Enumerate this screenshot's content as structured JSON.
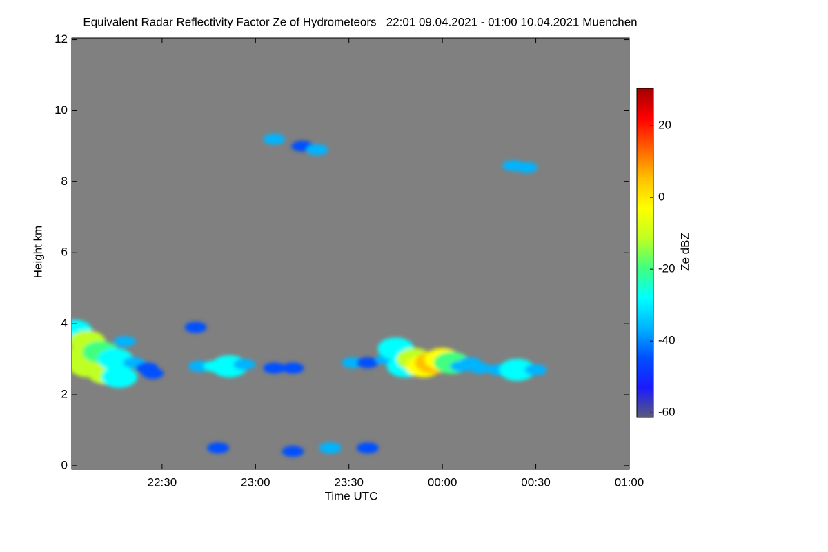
{
  "chart_data": {
    "type": "heatmap",
    "title": "Equivalent Radar Reflectivity Factor Ze of Hydrometeors   22:01 09.04.2021 - 01:00 10.04.2021 Muenchen",
    "x_label": "Time UTC",
    "y_label": "Height km",
    "colorbar_label": "Ze dBZ",
    "xlim": [
      22.0167,
      25.0
    ],
    "xticks": [
      {
        "value": 22.5,
        "label": "22:30"
      },
      {
        "value": 23.0,
        "label": "23:00"
      },
      {
        "value": 23.5,
        "label": "23:30"
      },
      {
        "value": 24.0,
        "label": "00:00"
      },
      {
        "value": 24.5,
        "label": "00:30"
      },
      {
        "value": 25.0,
        "label": "01:00"
      }
    ],
    "ylim": [
      -0.1,
      12.05
    ],
    "yticks": [
      0,
      2,
      4,
      6,
      8,
      10,
      12
    ],
    "zlim": [
      -61.3,
      30.4
    ],
    "zticks": [
      -60,
      -40,
      -20,
      0,
      20
    ],
    "background": "#808080",
    "colormap": [
      "#5a5a7a",
      "#1a1aff",
      "#0050ff",
      "#00b4ff",
      "#00ffff",
      "#40ff80",
      "#c0ff20",
      "#ffff00",
      "#ffc000",
      "#ff6000",
      "#ff0000",
      "#a00000"
    ],
    "x": [
      22.03,
      22.03,
      22.1,
      22.1,
      22.17,
      22.2,
      22.25,
      22.27,
      22.3,
      22.35,
      22.42,
      22.45,
      22.68,
      22.7,
      22.78,
      22.86,
      22.94,
      23.1,
      23.2,
      23.52,
      23.6,
      23.7,
      23.75,
      23.8,
      23.85,
      23.9,
      23.95,
      24.0,
      24.05,
      24.1,
      24.15,
      24.2,
      24.3,
      24.4,
      24.5,
      23.1,
      23.25,
      23.33,
      24.38,
      24.45,
      22.8,
      23.2,
      23.4,
      23.6
    ],
    "y": [
      3.8,
      3.0,
      3.5,
      2.8,
      3.2,
      2.6,
      3.0,
      2.5,
      3.5,
      2.9,
      2.75,
      2.6,
      3.9,
      2.8,
      2.8,
      2.8,
      2.85,
      2.75,
      2.75,
      2.9,
      2.9,
      3.0,
      3.3,
      2.8,
      3.0,
      2.8,
      2.9,
      3.0,
      2.9,
      2.8,
      2.9,
      2.75,
      2.7,
      2.7,
      2.7,
      9.2,
      9.0,
      8.9,
      8.45,
      8.4,
      0.5,
      0.4,
      0.5,
      0.5
    ],
    "values": [
      -30,
      -15,
      -15,
      -12,
      -18,
      -14,
      -28,
      -25,
      -35,
      -40,
      -42,
      -45,
      -45,
      -38,
      -32,
      -30,
      -38,
      -45,
      -45,
      -40,
      -42,
      -35,
      -30,
      -25,
      -10,
      0,
      5,
      -5,
      -20,
      -35,
      -40,
      -38,
      -35,
      -30,
      -35,
      -40,
      -42,
      -38,
      -38,
      -40,
      -45,
      -45,
      -40,
      -45
    ]
  }
}
